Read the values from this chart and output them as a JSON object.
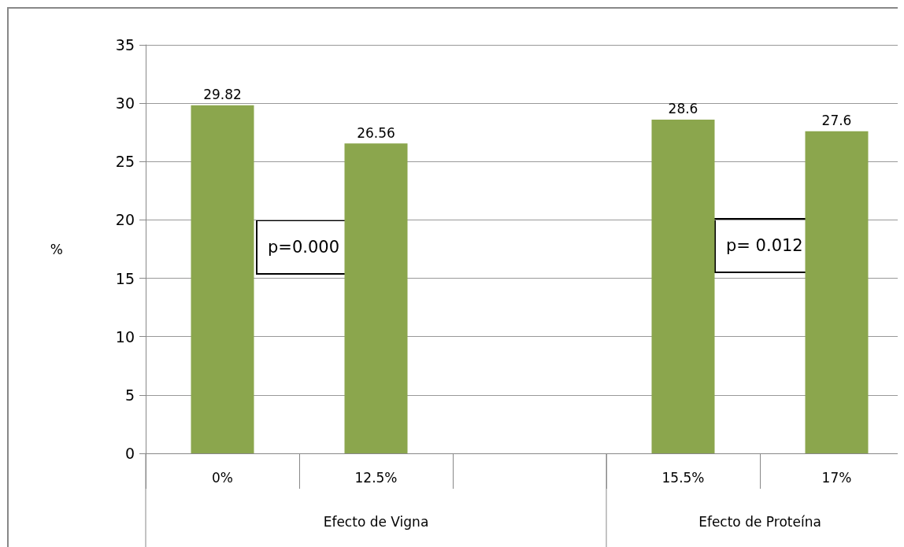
{
  "chart_data": {
    "type": "bar",
    "ylabel": "%",
    "categories": [
      "0%",
      "12.5%",
      null,
      "15.5%",
      "17%"
    ],
    "values": [
      29.82,
      26.56,
      null,
      28.6,
      27.6
    ],
    "color": "#8ba64d",
    "ylim": [
      0,
      35
    ],
    "yticks": [
      0,
      5,
      10,
      15,
      20,
      25,
      30,
      35
    ],
    "grid": "y",
    "data_labels": true,
    "annotations": [
      "p=0.000",
      "p= 0.012",
      "Efecto de Vigna",
      "Efecto de Proteína"
    ]
  }
}
